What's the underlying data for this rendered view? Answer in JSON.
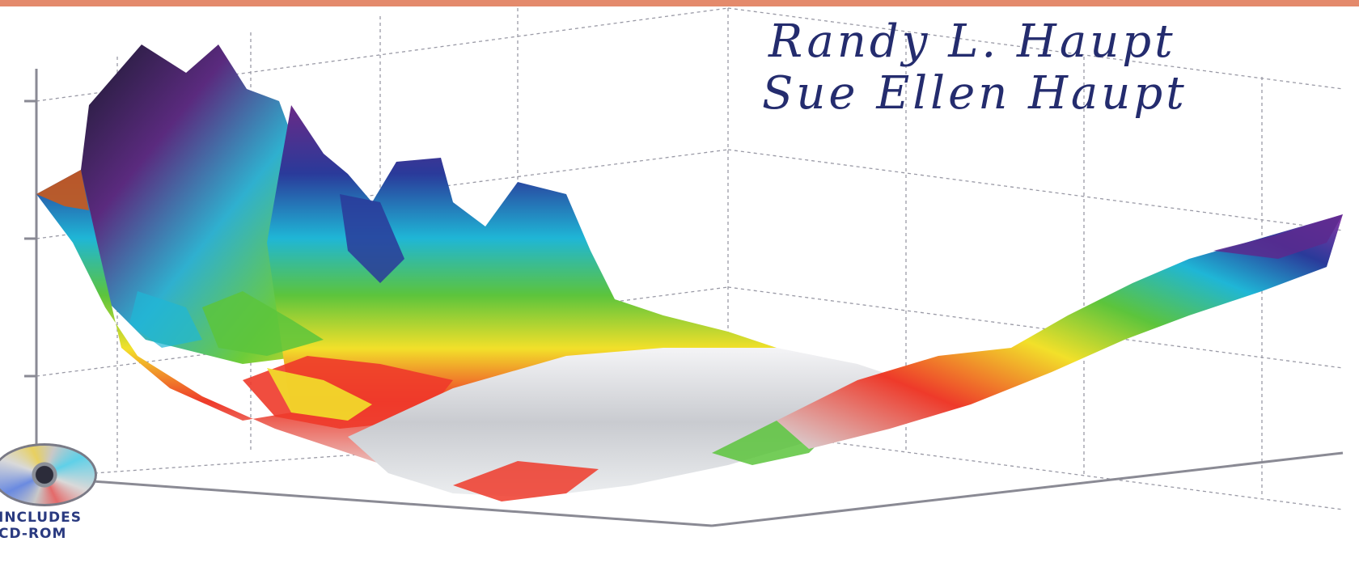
{
  "cover": {
    "authors": [
      "Randy L. Haupt",
      "Sue Ellen Haupt"
    ],
    "badge": {
      "line1": "INCLUDES",
      "line2": "CD-ROM"
    }
  },
  "colors": {
    "top_strip": "#e48a6c",
    "author_text": "#242c6e",
    "badge_text": "#2a3a80",
    "surface_palette": [
      "#6a2a86",
      "#2a3a9a",
      "#1fb6d6",
      "#5cc43c",
      "#f2e02a",
      "#ee3a2a",
      "#d8dade"
    ]
  },
  "icons": {
    "disc": "cd-disc-icon"
  }
}
